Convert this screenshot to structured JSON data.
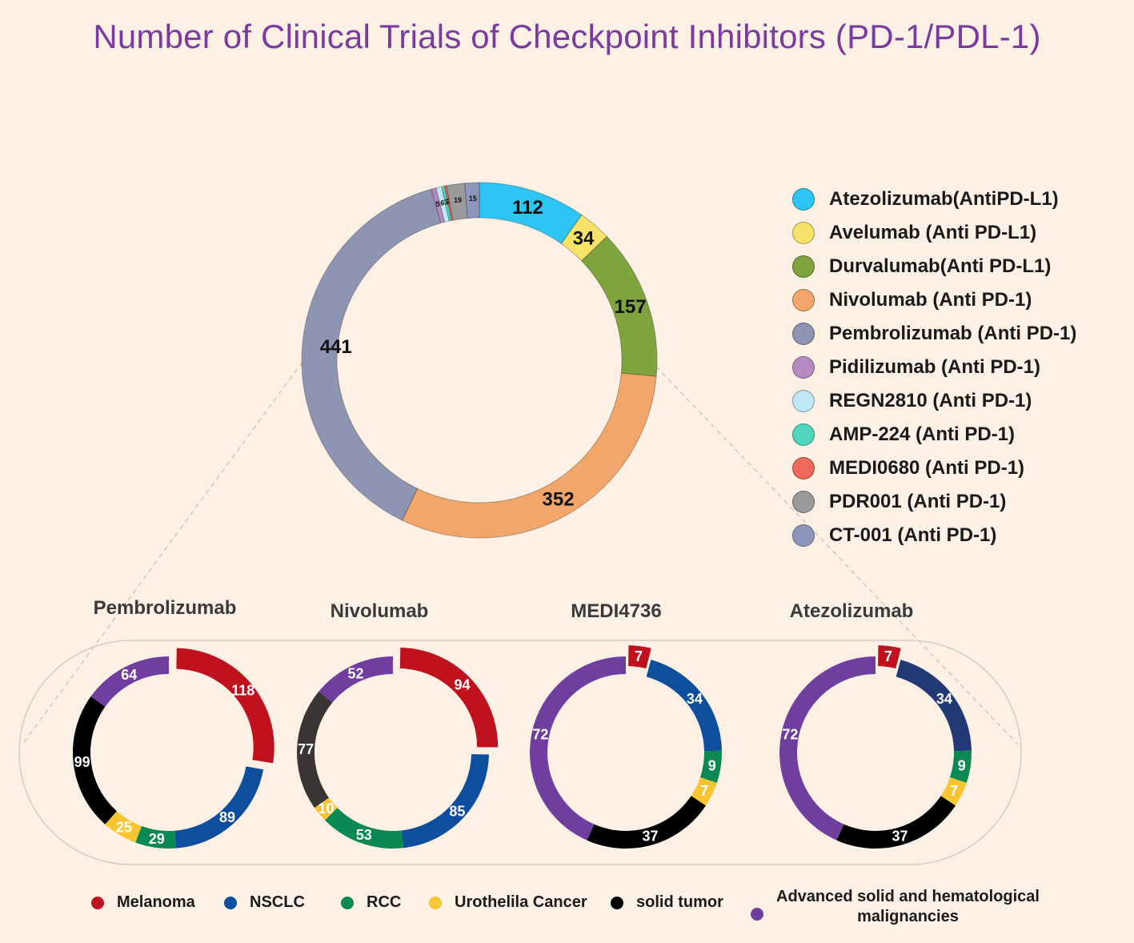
{
  "chart_data": [
    {
      "type": "donut",
      "title": "Number of Clinical Trials of Checkpoint Inhibitors (PD-1/PDL-1)",
      "series": [
        {
          "name": "Atezolizumab(AntiPD-L1)",
          "value": 112,
          "label": "112",
          "color": "#2ec5f5"
        },
        {
          "name": "Avelumab (Anti PD-L1)",
          "value": 34,
          "label": "34",
          "color": "#f8e36a"
        },
        {
          "name": "Durvalumab(Anti PD-L1)",
          "value": 157,
          "label": "157",
          "color": "#7fa33f"
        },
        {
          "name": "Nivolumab (Anti PD-1)",
          "value": 352,
          "label": "352",
          "color": "#f2a66a"
        },
        {
          "name": "Pembrolizumab (Anti PD-1)",
          "value": 441,
          "label": "441",
          "color": "#8e95b2"
        },
        {
          "name": "Pidilizumab (Anti PD-1)",
          "value": 5,
          "label": "5",
          "color": "#b58ac2"
        },
        {
          "name": "REGN2810 (Anti PD-1)",
          "value": 6,
          "label": "6",
          "color": "#bfe8f7"
        },
        {
          "name": "AMP-224 (Anti PD-1)",
          "value": 3,
          "label": "3",
          "color": "#4fd6bf"
        },
        {
          "name": "MEDI0680 (Anti PD-1)",
          "value": 2,
          "label": "2",
          "color": "#ef6a5a"
        },
        {
          "name": "PDR001 (Anti PD-1)",
          "value": 19,
          "label": "19",
          "color": "#9a9a9a"
        },
        {
          "name": "CT-001 (Anti PD-1)",
          "value": 15,
          "label": "15",
          "color": "#8c96ba"
        }
      ]
    },
    {
      "type": "donut",
      "title": "Pembrolizumab",
      "series": [
        {
          "name": "Melanoma",
          "value": 118,
          "label": "118"
        },
        {
          "name": "NSCLC",
          "value": 89,
          "label": "89"
        },
        {
          "name": "RCC",
          "value": 29,
          "label": "29"
        },
        {
          "name": "Urothelila Cancer",
          "value": 25,
          "label": "25"
        },
        {
          "name": "solid tumor",
          "value": 99,
          "label": "99"
        },
        {
          "name": "Advanced solid and hematological malignancies",
          "value": 64,
          "label": "64"
        }
      ]
    },
    {
      "type": "donut",
      "title": "Nivolumab",
      "series": [
        {
          "name": "Melanoma",
          "value": 94,
          "label": "94"
        },
        {
          "name": "NSCLC",
          "value": 85,
          "label": "85"
        },
        {
          "name": "RCC",
          "value": 53,
          "label": "53"
        },
        {
          "name": "Urothelila Cancer",
          "value": 10,
          "label": "10"
        },
        {
          "name": "solid tumor",
          "value": 77,
          "label": "77"
        },
        {
          "name": "Advanced solid and hematological malignancies",
          "value": 52,
          "label": "52"
        }
      ]
    },
    {
      "type": "donut",
      "title": "MEDI4736",
      "series": [
        {
          "name": "Melanoma",
          "value": 7,
          "label": "7"
        },
        {
          "name": "NSCLC",
          "value": 34,
          "label": "34"
        },
        {
          "name": "RCC",
          "value": 9,
          "label": "9"
        },
        {
          "name": "Urothelila Cancer",
          "value": 7,
          "label": "7"
        },
        {
          "name": "solid tumor",
          "value": 37,
          "label": "37"
        },
        {
          "name": "Advanced solid and hematological malignancies",
          "value": 72,
          "label": "72"
        }
      ]
    },
    {
      "type": "donut",
      "title": "Atezolizumab",
      "series": [
        {
          "name": "Melanoma",
          "value": 7,
          "label": "7"
        },
        {
          "name": "NSCLC",
          "value": 34,
          "label": "34"
        },
        {
          "name": "RCC",
          "value": 9,
          "label": "9"
        },
        {
          "name": "Urothelila Cancer",
          "value": 7,
          "label": "7"
        },
        {
          "name": "solid tumor",
          "value": 37,
          "label": "37"
        },
        {
          "name": "Advanced solid and hematological malignancies",
          "value": 72,
          "label": "72"
        }
      ]
    }
  ],
  "title": "Number of Clinical Trials of Checkpoint Inhibitors (PD-1/PDL-1)",
  "subtitles": [
    "Pembrolizumab",
    "Nivolumab",
    "MEDI4736",
    "Atezolizumab"
  ],
  "indication_legend": [
    {
      "label": "Melanoma",
      "color": "#c0111f"
    },
    {
      "label": "NSCLC",
      "color": "#0d4f9c"
    },
    {
      "label": "RCC",
      "color": "#0a8a52"
    },
    {
      "label": "Urothelila Cancer",
      "color": "#f7c531"
    },
    {
      "label": "solid tumor",
      "color": "#000000"
    },
    {
      "label_line1": "Advanced solid and hematological",
      "label_line2": "malignancies",
      "color": "#6f3e9e"
    }
  ],
  "atezo_nsclc_color": "#223a73",
  "nivo_solid_color": "#3a3434"
}
